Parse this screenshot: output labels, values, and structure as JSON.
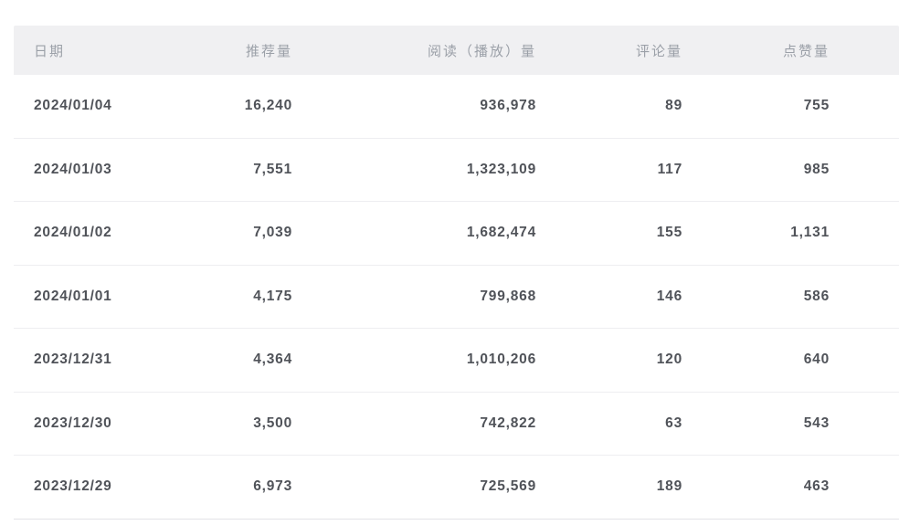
{
  "table": {
    "columns": [
      {
        "key": "date",
        "label": "日期"
      },
      {
        "key": "recommends",
        "label": "推荐量"
      },
      {
        "key": "views",
        "label": "阅读（播放）量"
      },
      {
        "key": "comments",
        "label": "评论量"
      },
      {
        "key": "likes",
        "label": "点赞量"
      }
    ],
    "rows": [
      [
        "2024/01/04",
        "16,240",
        "936,978",
        "89",
        "755"
      ],
      [
        "2024/01/03",
        "7,551",
        "1,323,109",
        "117",
        "985"
      ],
      [
        "2024/01/02",
        "7,039",
        "1,682,474",
        "155",
        "1,131"
      ],
      [
        "2024/01/01",
        "4,175",
        "799,868",
        "146",
        "586"
      ],
      [
        "2023/12/31",
        "4,364",
        "1,010,206",
        "120",
        "640"
      ],
      [
        "2023/12/30",
        "3,500",
        "742,822",
        "63",
        "543"
      ],
      [
        "2023/12/29",
        "6,973",
        "725,569",
        "189",
        "463"
      ]
    ]
  },
  "colors": {
    "header_bg": "#f0f0f2",
    "header_text": "#9ba0a8",
    "cell_text": "#505359",
    "row_divider": "#eeeef1",
    "bottom_border": "#e3e3e7",
    "page_bg": "#ffffff"
  }
}
